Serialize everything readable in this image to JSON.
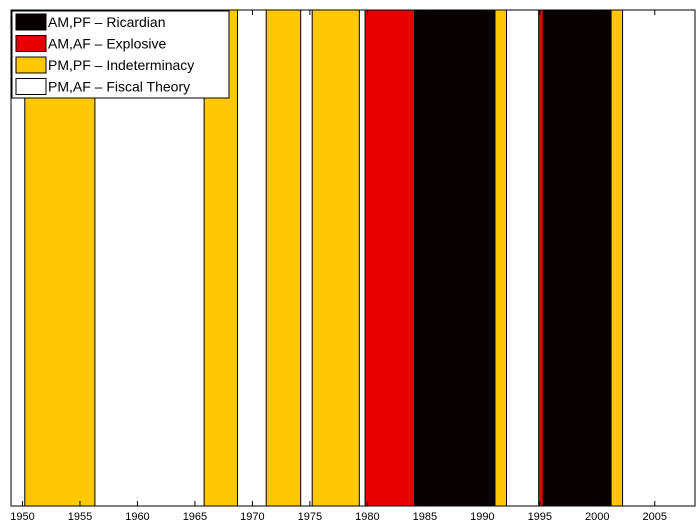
{
  "chart_data": {
    "type": "area",
    "xlim": [
      1949.0,
      2008.5
    ],
    "x_ticks": [
      1950,
      1955,
      1960,
      1965,
      1970,
      1975,
      1980,
      1985,
      1990,
      1995,
      2000,
      2005
    ],
    "grid": false,
    "legend_position": "top-left",
    "regimes": [
      {
        "key": "ricardian",
        "label": "AM,PF – Ricardian",
        "color": "#0a0000"
      },
      {
        "key": "explosive",
        "label": "AM,AF – Explosive",
        "color": "#e80000"
      },
      {
        "key": "indeterminacy",
        "label": "PM,PF – Indeterminacy",
        "color": "#ffc800"
      },
      {
        "key": "fiscal",
        "label": "PM,AF – Fiscal Theory",
        "color": "#ffffff"
      }
    ],
    "periods": [
      {
        "regime": "indeterminacy",
        "start": 1950.2,
        "end": 1956.3
      },
      {
        "regime": "indeterminacy",
        "start": 1965.8,
        "end": 1968.7
      },
      {
        "regime": "indeterminacy",
        "start": 1971.2,
        "end": 1974.2
      },
      {
        "regime": "indeterminacy",
        "start": 1975.2,
        "end": 1979.3
      },
      {
        "regime": "explosive",
        "start": 1979.8,
        "end": 1984.1
      },
      {
        "regime": "ricardian",
        "start": 1984.1,
        "end": 1991.1
      },
      {
        "regime": "indeterminacy",
        "start": 1991.1,
        "end": 1992.1
      },
      {
        "regime": "explosive",
        "start": 1994.9,
        "end": 1995.3
      },
      {
        "regime": "ricardian",
        "start": 1995.3,
        "end": 2001.2
      },
      {
        "regime": "indeterminacy",
        "start": 2001.2,
        "end": 2002.2
      }
    ]
  }
}
